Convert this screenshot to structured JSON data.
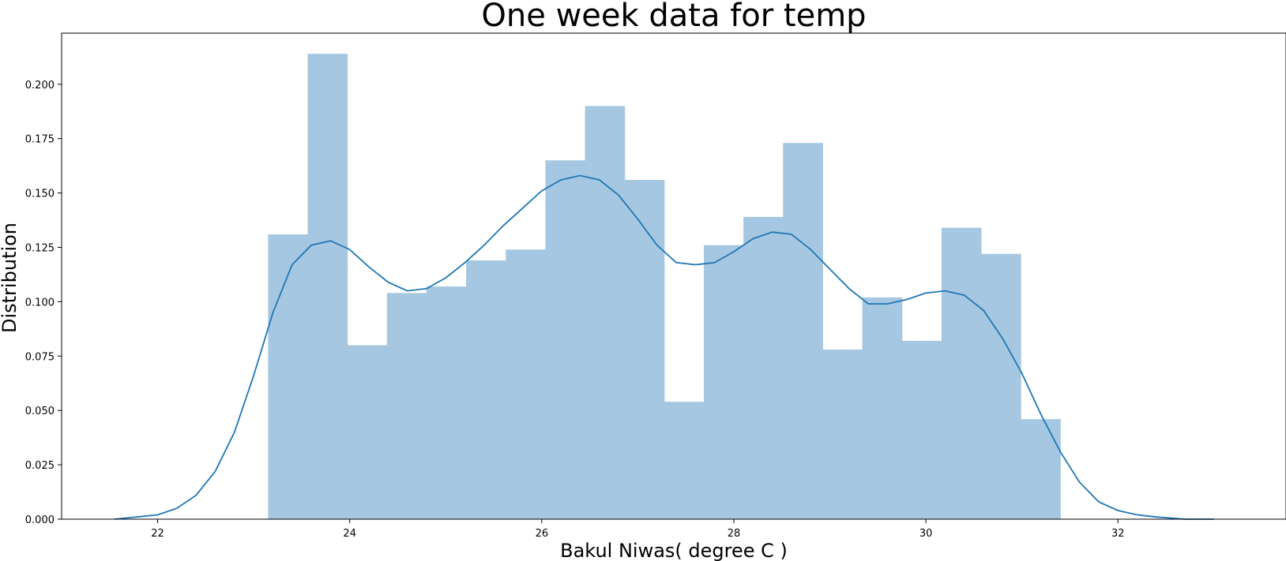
{
  "chart_data": {
    "type": "bar",
    "title": "One week data for temp",
    "xlabel": "Bakul Niwas( degree C )",
    "ylabel": "Distribution",
    "xlim": [
      21.0,
      33.75
    ],
    "ylim": [
      0.0,
      0.2235
    ],
    "xticks": [
      22,
      24,
      26,
      28,
      30,
      32
    ],
    "yticks": [
      0.0,
      0.025,
      0.05,
      0.075,
      0.1,
      0.125,
      0.15,
      0.175,
      0.2
    ],
    "ytick_labels": [
      "0.000",
      "0.025",
      "0.050",
      "0.075",
      "0.100",
      "0.125",
      "0.150",
      "0.175",
      "0.200"
    ],
    "grid": false,
    "histogram": {
      "bin_start": 23.15,
      "bin_width": 0.4125,
      "values": [
        0.131,
        0.214,
        0.08,
        0.104,
        0.107,
        0.119,
        0.124,
        0.165,
        0.19,
        0.156,
        0.054,
        0.126,
        0.139,
        0.173,
        0.078,
        0.102,
        0.082,
        0.134,
        0.122,
        0.046
      ],
      "color": "#a6c7e1"
    },
    "kde": {
      "color": "#1f77b4",
      "x": [
        21.55,
        22.0,
        22.2,
        22.4,
        22.6,
        22.8,
        23.0,
        23.2,
        23.4,
        23.6,
        23.8,
        24.0,
        24.2,
        24.4,
        24.6,
        24.8,
        25.0,
        25.2,
        25.4,
        25.6,
        25.8,
        26.0,
        26.2,
        26.4,
        26.6,
        26.8,
        27.0,
        27.2,
        27.4,
        27.6,
        27.8,
        28.0,
        28.2,
        28.4,
        28.6,
        28.8,
        29.0,
        29.2,
        29.4,
        29.6,
        29.8,
        30.0,
        30.2,
        30.4,
        30.6,
        30.8,
        31.0,
        31.2,
        31.4,
        31.6,
        31.8,
        32.0,
        32.2,
        32.4,
        32.7,
        33.0
      ],
      "y": [
        0.0,
        0.002,
        0.005,
        0.011,
        0.022,
        0.04,
        0.066,
        0.095,
        0.117,
        0.126,
        0.128,
        0.124,
        0.116,
        0.109,
        0.105,
        0.106,
        0.111,
        0.118,
        0.126,
        0.135,
        0.143,
        0.151,
        0.156,
        0.158,
        0.156,
        0.149,
        0.138,
        0.126,
        0.118,
        0.117,
        0.118,
        0.123,
        0.129,
        0.132,
        0.131,
        0.124,
        0.115,
        0.106,
        0.099,
        0.099,
        0.101,
        0.104,
        0.105,
        0.103,
        0.096,
        0.083,
        0.067,
        0.048,
        0.031,
        0.017,
        0.008,
        0.004,
        0.002,
        0.001,
        0.0,
        0.0
      ]
    }
  }
}
